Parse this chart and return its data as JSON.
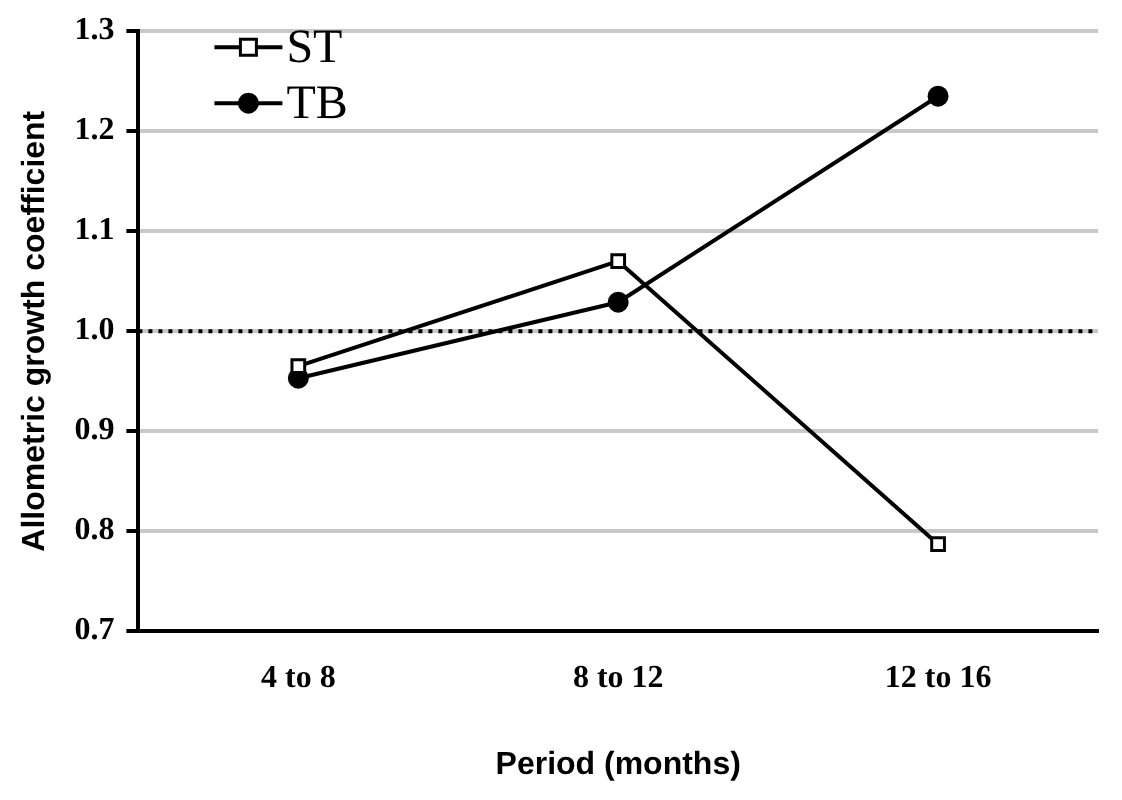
{
  "chart_data": {
    "type": "line",
    "xlabel": "Period (months)",
    "ylabel": "Allometric growth coefficient",
    "categories": [
      "4 to 8",
      "8 to 12",
      "12 to 16"
    ],
    "series": [
      {
        "name": "ST",
        "color": "#000000",
        "marker": "square",
        "values": [
          0.965,
          1.07,
          0.787
        ]
      },
      {
        "name": "TB",
        "color": "#000000",
        "marker": "circle",
        "values": [
          0.953,
          1.029,
          1.235
        ]
      }
    ],
    "ylim": [
      0.7,
      1.3
    ],
    "yticks": [
      {
        "value": 0.7,
        "label": "0.7"
      },
      {
        "value": 0.8,
        "label": "0.8"
      },
      {
        "value": 0.9,
        "label": "0.9"
      },
      {
        "value": 1.0,
        "label": "1.0"
      },
      {
        "value": 1.1,
        "label": "1.1"
      },
      {
        "value": 1.2,
        "label": "1.2"
      },
      {
        "value": 1.3,
        "label": "1.3"
      }
    ],
    "grid": "y",
    "legend": "top left",
    "line_style": "solid",
    "ref_lines": [
      {
        "axis": "y",
        "value": 1.0,
        "line_style": "dotted",
        "color": "#000000"
      }
    ]
  }
}
